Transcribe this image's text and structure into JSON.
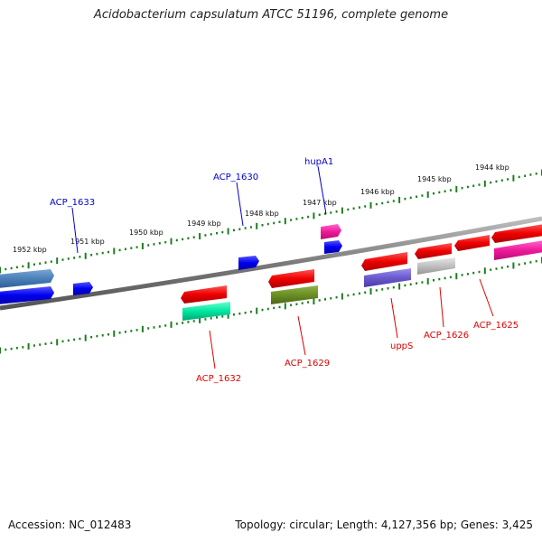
{
  "title": "Acidobacterium capsulatum ATCC 51196, complete genome",
  "accession": "Accession: NC_012483",
  "topology": "Topology: circular; Length: 4,127,356 bp; Genes: 3,425",
  "colors": {
    "background": "#ffffff",
    "backbone": "#808080",
    "tick": "#1e7d1e",
    "label_upper": "#0000cc",
    "label_lower": "#dd0000",
    "kbp_text": "#111111"
  },
  "kbp_labels": [
    "1952 kbp",
    "1951 kbp",
    "1950 kbp",
    "1949 kbp",
    "1948 kbp",
    "1947 kbp",
    "1946 kbp",
    "1945 kbp",
    "1944 kbp"
  ],
  "genes": [
    {
      "name": "ACP_1633",
      "label": "ACP_1633",
      "color": "#0000cc",
      "strand": "forward"
    },
    {
      "name": "ACP_1630",
      "label": "ACP_1630",
      "color": "#0000cc",
      "strand": "forward"
    },
    {
      "name": "hupA1",
      "label": "hupA1",
      "color": "#0000cc",
      "strand": "forward"
    },
    {
      "name": "ACP_1632",
      "label": "ACP_1632",
      "color": "#dd0000",
      "strand": "reverse"
    },
    {
      "name": "ACP_1629",
      "label": "ACP_1629",
      "color": "#dd0000",
      "strand": "reverse"
    },
    {
      "name": "uppS",
      "label": "uppS",
      "color": "#dd0000",
      "strand": "reverse"
    },
    {
      "name": "ACP_1626",
      "label": "ACP_1626",
      "color": "#dd0000",
      "strand": "reverse"
    },
    {
      "name": "ACP_1625",
      "label": "ACP_1625",
      "color": "#dd0000",
      "strand": "reverse"
    }
  ]
}
